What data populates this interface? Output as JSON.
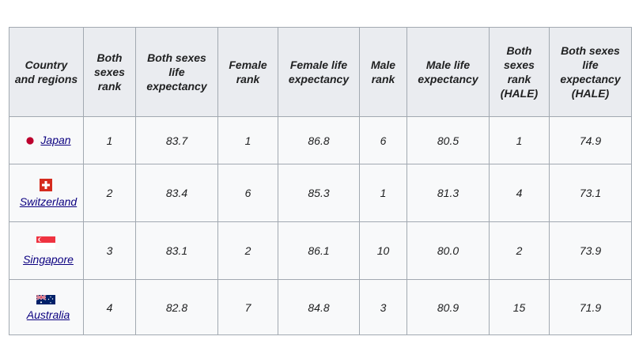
{
  "table": {
    "headers": [
      "Country and regions",
      "Both sexes rank",
      "Both sexes life expectancy",
      "Female rank",
      "Female life expectancy",
      "Male rank",
      "Male life expectancy",
      "Both sexes rank (HALE)",
      "Both sexes life expectancy (HALE)"
    ],
    "rows": [
      {
        "flag_icon": "japan-flag-icon",
        "country": "Japan",
        "cells": [
          "1",
          "83.7",
          "1",
          "86.8",
          "6",
          "80.5",
          "1",
          "74.9"
        ]
      },
      {
        "flag_icon": "switzerland-flag-icon",
        "country": "Switzerland",
        "cells": [
          "2",
          "83.4",
          "6",
          "85.3",
          "1",
          "81.3",
          "4",
          "73.1"
        ]
      },
      {
        "flag_icon": "singapore-flag-icon",
        "country": "Singapore",
        "cells": [
          "3",
          "83.1",
          "2",
          "86.1",
          "10",
          "80.0",
          "2",
          "73.9"
        ]
      },
      {
        "flag_icon": "australia-flag-icon",
        "country": "Australia",
        "cells": [
          "4",
          "82.8",
          "7",
          "84.8",
          "3",
          "80.9",
          "15",
          "71.9"
        ]
      }
    ]
  },
  "colors": {
    "header_bg": "#eaecf0",
    "cell_bg": "#f8f9fa",
    "border": "#a2a9b1",
    "link": "#0b0080"
  }
}
